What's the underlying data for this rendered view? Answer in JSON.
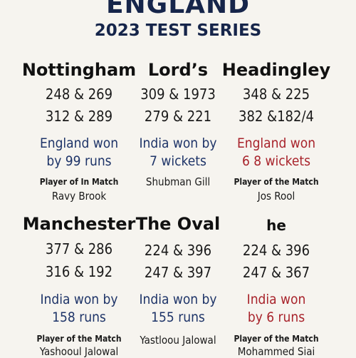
{
  "header": {
    "title": "ENGLAND",
    "subtitle": "2023 TEST SERIES"
  },
  "tests": [
    {
      "venue": "Nottingham",
      "innings_1": "248 & 269",
      "innings_2": "312 & 289",
      "result_line_1": "England won",
      "result_line_2": "by 99 runs",
      "result_color": "#1e3468",
      "potm_label": "Player of In Match",
      "potm_name": "Ravy Brook"
    },
    {
      "venue": "Lord’s",
      "innings_1": "309 & 1973",
      "innings_2": "279 & 221",
      "result_line_1": "India won by",
      "result_line_2": "7 wickets",
      "result_color": "#1e3468",
      "potm_label": "",
      "potm_name": "Shubman Gill"
    },
    {
      "venue": "Headingley",
      "innings_1": "348 & 225",
      "innings_2": "382 &182/4",
      "result_line_1": "England won",
      "result_line_2": "6 8 wickets",
      "result_color": "#a8232b",
      "potm_label": "Player of the Match",
      "potm_name": "Jos Rool"
    },
    {
      "venue": "Manchester",
      "innings_1": "377 & 286",
      "innings_2": "316 & 192",
      "result_line_1": "India won by",
      "result_line_2": "158 runs",
      "result_color": "#1e3468",
      "potm_label": "Player of the Match",
      "potm_name": "Yashooul Jalowal"
    },
    {
      "venue": "The Oval",
      "innings_1": "224 & 396",
      "innings_2": "247 & 397",
      "result_line_1": "India won by",
      "result_line_2": "155 runs",
      "result_color": "#1e3468",
      "potm_label": "",
      "potm_name": "Yastloou Jalowal"
    },
    {
      "venue": "he",
      "innings_1": "224 & 396",
      "innings_2": "247 & 367",
      "result_line_1": "India won",
      "result_line_2": "by 6 runs",
      "result_color": "#a8232b",
      "potm_label": "Player of the Match",
      "potm_name": "Mohammed Siai"
    }
  ]
}
